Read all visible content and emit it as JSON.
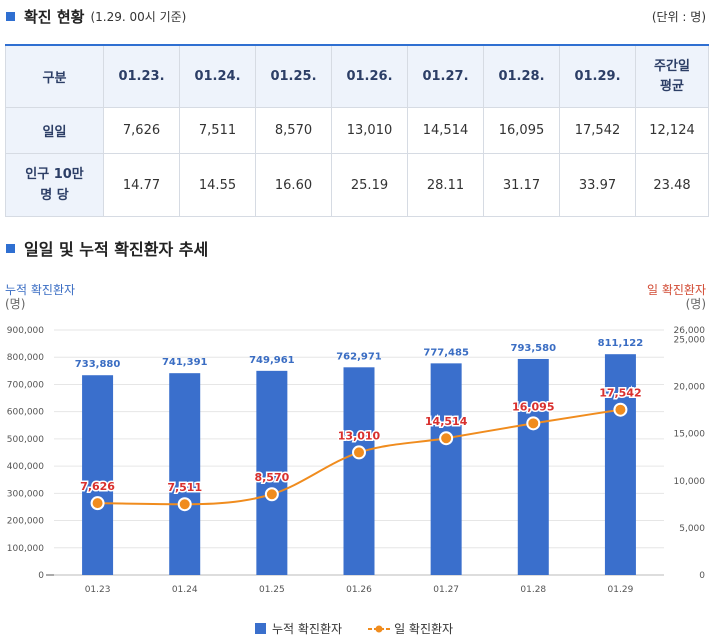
{
  "section1": {
    "title": "확진 현황",
    "subtitle": "(1.29. 00시 기준)",
    "unit": "(단위 : 명)"
  },
  "table": {
    "headers": [
      "구분",
      "01.23.",
      "01.24.",
      "01.25.",
      "01.26.",
      "01.27.",
      "01.28.",
      "01.29.",
      "주간일\n평균"
    ],
    "rows": [
      {
        "label": "일일",
        "values": [
          "7,626",
          "7,511",
          "8,570",
          "13,010",
          "14,514",
          "16,095",
          "17,542",
          "12,124"
        ]
      },
      {
        "label": "인구 10만\n명 당",
        "values": [
          "14.77",
          "14.55",
          "16.60",
          "25.19",
          "28.11",
          "31.17",
          "33.97",
          "23.48"
        ]
      }
    ]
  },
  "section2": {
    "title": "일일 및 누적 확진환자 추세"
  },
  "left_axis": {
    "label": "누적 확진환자",
    "unit": "(명)"
  },
  "right_axis": {
    "label": "일 확진환자",
    "unit": "(명)"
  },
  "legend": {
    "bar": "누적 확진환자",
    "line": "일 확진환자"
  },
  "colors": {
    "bar": "#3a6fcc",
    "line": "#f08c1e",
    "bar_label": "#3a6dc3",
    "line_label": "#d9302e",
    "accent": "#2f6fd1"
  },
  "chart_data": {
    "type": "bar",
    "categories": [
      "01.23",
      "01.24",
      "01.25",
      "01.26",
      "01.27",
      "01.28",
      "01.29"
    ],
    "series": [
      {
        "name": "누적 확진환자",
        "type": "bar",
        "axis": "left",
        "values": [
          733880,
          741391,
          749961,
          762971,
          777485,
          793580,
          811122
        ],
        "labels": [
          "733,880",
          "741,391",
          "749,961",
          "762,971",
          "777,485",
          "793,580",
          "811,122"
        ]
      },
      {
        "name": "일 확진환자",
        "type": "line",
        "axis": "right",
        "values": [
          7626,
          7511,
          8570,
          13010,
          14514,
          16095,
          17542
        ],
        "labels": [
          "7,626",
          "7,511",
          "8,570",
          "13,010",
          "14,514",
          "16,095",
          "17,542"
        ]
      }
    ],
    "ylim_left": [
      0,
      900000
    ],
    "yticks_left": [
      "0",
      "100,000",
      "200,000",
      "300,000",
      "400,000",
      "500,000",
      "600,000",
      "700,000",
      "800,000",
      "900,000"
    ],
    "ylim_right": [
      0,
      26000
    ],
    "yticks_right": [
      {
        "value": 0,
        "label": "0"
      },
      {
        "value": 5000,
        "label": "5,000"
      },
      {
        "value": 10000,
        "label": "10,000"
      },
      {
        "value": 15000,
        "label": "15,000"
      },
      {
        "value": 20000,
        "label": "20,000"
      },
      {
        "value": 25000,
        "label": "25,000"
      },
      {
        "value": 26000,
        "label": "26,000"
      }
    ]
  }
}
